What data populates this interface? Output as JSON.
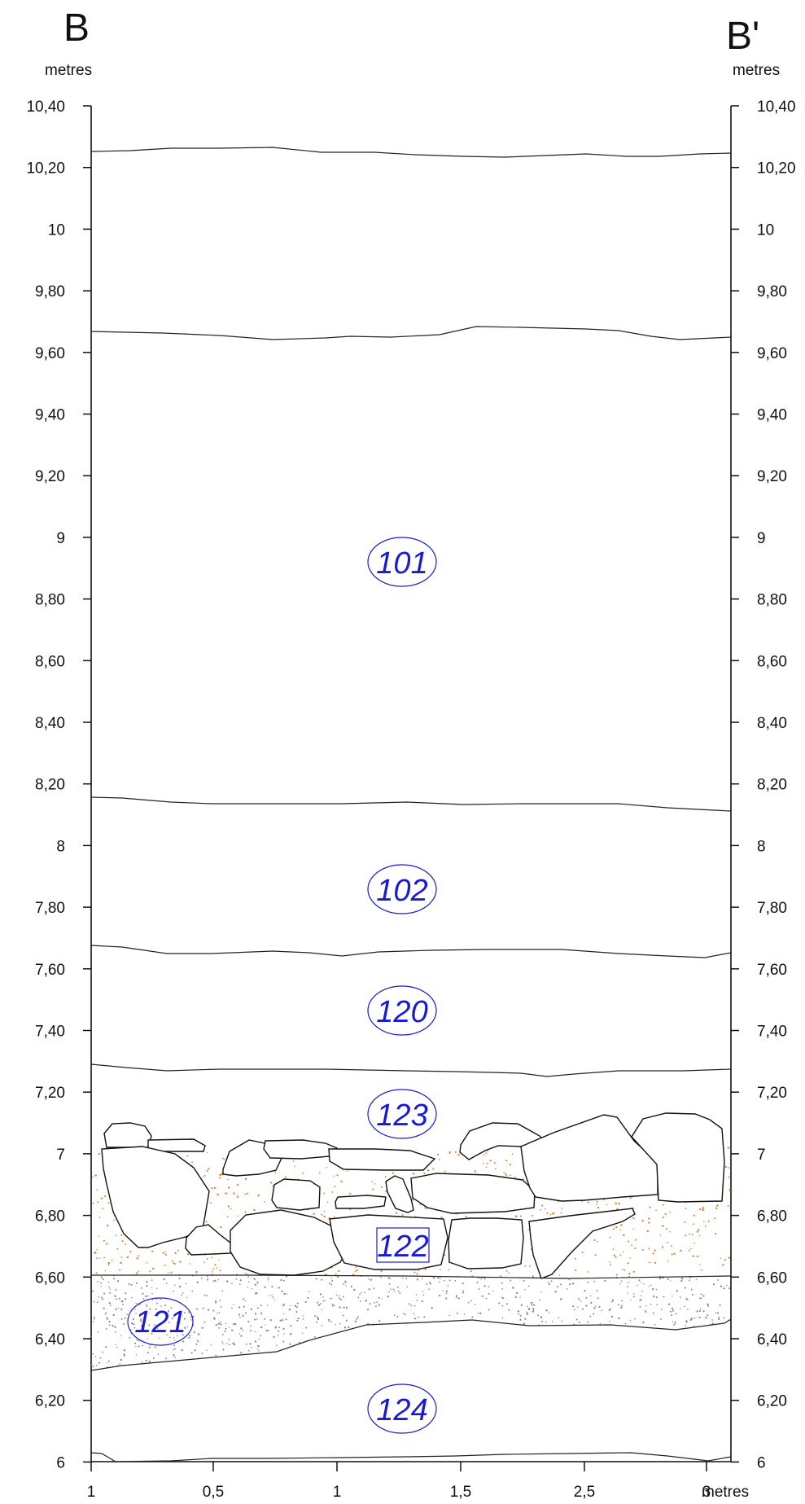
{
  "section": {
    "left_endpoint": "B",
    "right_endpoint": "B'",
    "left_unit": "metres",
    "right_unit": "metres",
    "x_unit": "metres",
    "y_ticks": [
      "10,40",
      "10,20",
      "10",
      "9,80",
      "9,60",
      "9,40",
      "9,20",
      "9",
      "8,80",
      "8,60",
      "8,40",
      "8,20",
      "8",
      "7,80",
      "7,60",
      "7,40",
      "7,20",
      "7",
      "6,80",
      "6,60",
      "6,40",
      "6,20",
      "6"
    ],
    "x_ticks": [
      "1",
      "0,5",
      "1",
      "1,5",
      "2,5",
      "3"
    ]
  },
  "layers": [
    {
      "id": "101",
      "shape": "ellipse"
    },
    {
      "id": "102",
      "shape": "ellipse"
    },
    {
      "id": "120",
      "shape": "ellipse"
    },
    {
      "id": "123",
      "shape": "ellipse"
    },
    {
      "id": "122",
      "shape": "box"
    },
    {
      "id": "121",
      "shape": "ellipse"
    },
    {
      "id": "124",
      "shape": "ellipse"
    }
  ],
  "colors": {
    "label": "#1a1ad6",
    "orange_stipple": "#e07a1a",
    "grey_stipple": "#8a8a8a"
  }
}
